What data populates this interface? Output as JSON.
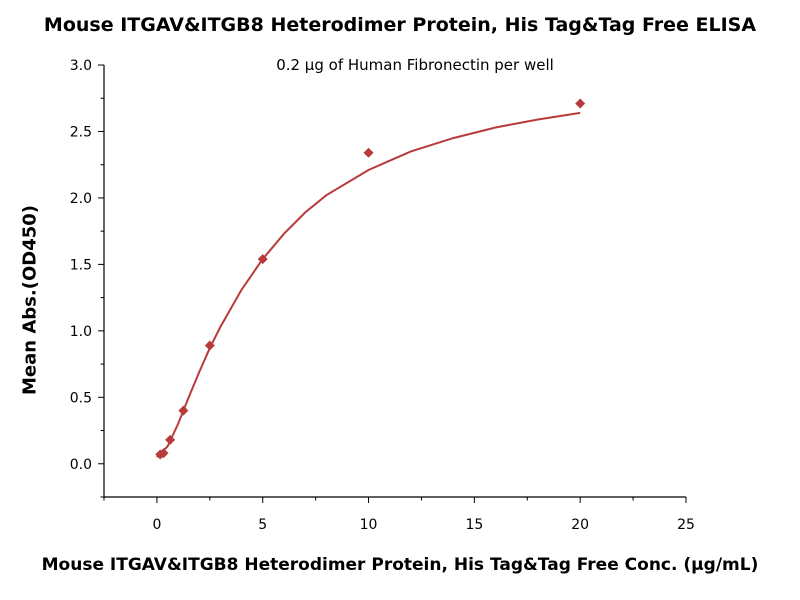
{
  "chart_data": {
    "type": "scatter",
    "title": "Mouse ITGAV&ITGB8 Heterodimer Protein, His Tag&Tag Free ELISA",
    "subtitle": "0.2 μg of Human Fibronectin per well",
    "xlabel": "Mouse ITGAV&ITGB8 Heterodimer Protein, His Tag&Tag Free Conc. (μg/mL)",
    "ylabel": "Mean Abs.(OD450)",
    "xlim": [
      -2.5,
      25
    ],
    "ylim": [
      -0.25,
      3.0
    ],
    "x_ticks": [
      0,
      5,
      10,
      15,
      20,
      25
    ],
    "y_ticks": [
      0.0,
      0.5,
      1.0,
      1.5,
      2.0,
      2.5,
      3.0
    ],
    "x_tick_labels": [
      "0",
      "5",
      "10",
      "15",
      "20",
      "25"
    ],
    "y_tick_labels": [
      "0.0",
      "0.5",
      "1.0",
      "1.5",
      "2.0",
      "2.5",
      "3.0"
    ],
    "grid": false,
    "series": [
      {
        "color": "#b83a3a",
        "marker": "diamond",
        "points": [
          {
            "x": 0.156,
            "y": 0.07
          },
          {
            "x": 0.313,
            "y": 0.08
          },
          {
            "x": 0.625,
            "y": 0.18
          },
          {
            "x": 1.25,
            "y": 0.4
          },
          {
            "x": 2.5,
            "y": 0.89
          },
          {
            "x": 5,
            "y": 1.54
          },
          {
            "x": 10,
            "y": 2.34
          },
          {
            "x": 20,
            "y": 2.71
          }
        ],
        "fit_curve": [
          {
            "x": 0.0,
            "y": 0.05
          },
          {
            "x": 0.5,
            "y": 0.13
          },
          {
            "x": 1.0,
            "y": 0.3
          },
          {
            "x": 1.5,
            "y": 0.5
          },
          {
            "x": 2.0,
            "y": 0.69
          },
          {
            "x": 2.5,
            "y": 0.87
          },
          {
            "x": 3.0,
            "y": 1.03
          },
          {
            "x": 4.0,
            "y": 1.31
          },
          {
            "x": 5.0,
            "y": 1.54
          },
          {
            "x": 6.0,
            "y": 1.73
          },
          {
            "x": 7.0,
            "y": 1.89
          },
          {
            "x": 8.0,
            "y": 2.02
          },
          {
            "x": 10.0,
            "y": 2.21
          },
          {
            "x": 12.0,
            "y": 2.35
          },
          {
            "x": 14.0,
            "y": 2.45
          },
          {
            "x": 16.0,
            "y": 2.53
          },
          {
            "x": 18.0,
            "y": 2.59
          },
          {
            "x": 20.0,
            "y": 2.64
          }
        ]
      }
    ]
  }
}
